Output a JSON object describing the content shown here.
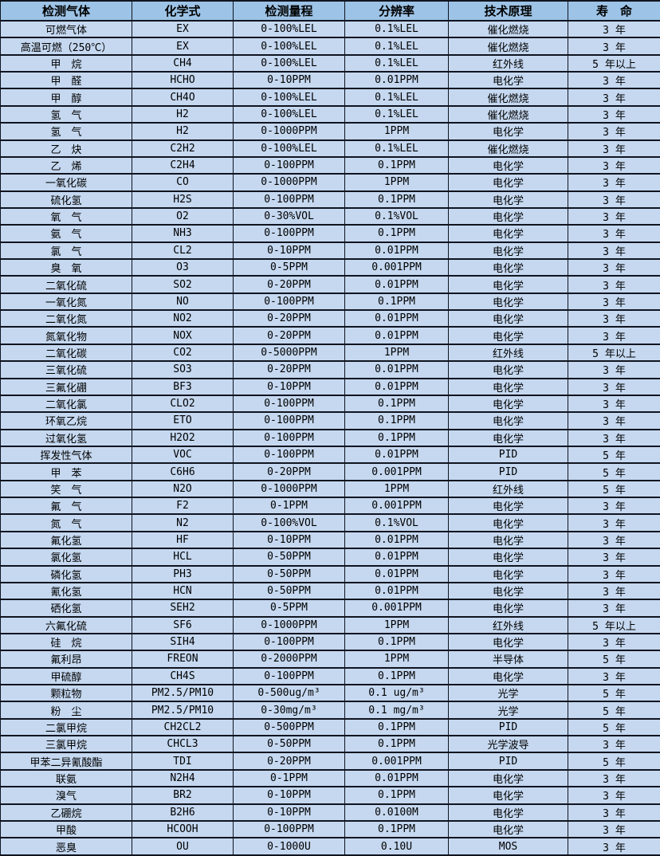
{
  "colors": {
    "header_bg": "#9DC3E6",
    "row_bg": "#C5D8F0",
    "border": "#10141F",
    "text": "#000000"
  },
  "table": {
    "columns": [
      "gas",
      "formula",
      "range",
      "resolution",
      "principle",
      "lifespan"
    ],
    "headers": [
      "检测气体",
      "化学式",
      "检测量程",
      "分辨率",
      "技术原理",
      "寿　命"
    ],
    "rows": [
      [
        "可燃气体",
        "EX",
        "0-100%LEL",
        "0.1%LEL",
        "催化燃烧",
        "3 年"
      ],
      [
        "高温可燃（250℃）",
        "EX",
        "0-100%LEL",
        "0.1%LEL",
        "催化燃烧",
        "3 年"
      ],
      [
        "甲　烷",
        "CH4",
        "0-100%LEL",
        "0.1%LEL",
        "红外线",
        "5 年以上"
      ],
      [
        "甲　醛",
        "HCHO",
        "0-10PPM",
        "0.01PPM",
        "电化学",
        "3 年"
      ],
      [
        "甲　醇",
        "CH4O",
        "0-100%LEL",
        "0.1%LEL",
        "催化燃烧",
        "3 年"
      ],
      [
        "氢　气",
        "H2",
        "0-100%LEL",
        "0.1%LEL",
        "催化燃烧",
        "3 年"
      ],
      [
        "氢　气",
        "H2",
        "0-1000PPM",
        "1PPM",
        "电化学",
        "3 年"
      ],
      [
        "乙　炔",
        "C2H2",
        "0-100%LEL",
        "0.1%LEL",
        "催化燃烧",
        "3 年"
      ],
      [
        "乙　烯",
        "C2H4",
        "0-100PPM",
        "0.1PPM",
        "电化学",
        "3 年"
      ],
      [
        "一氧化碳",
        "CO",
        "0-1000PPM",
        "1PPM",
        "电化学",
        "3 年"
      ],
      [
        "硫化氢",
        "H2S",
        "0-100PPM",
        "0.1PPM",
        "电化学",
        "3 年"
      ],
      [
        "氧　气",
        "O2",
        "0-30%VOL",
        "0.1%VOL",
        "电化学",
        "3 年"
      ],
      [
        "氨　气",
        "NH3",
        "0-100PPM",
        "0.1PPM",
        "电化学",
        "3 年"
      ],
      [
        "氯　气",
        "CL2",
        "0-10PPM",
        "0.01PPM",
        "电化学",
        "3 年"
      ],
      [
        "臭　氧",
        "O3",
        "0-5PPM",
        "0.001PPM",
        "电化学",
        "3 年"
      ],
      [
        "二氧化硫",
        "SO2",
        "0-20PPM",
        "0.01PPM",
        "电化学",
        "3 年"
      ],
      [
        "一氧化氮",
        "NO",
        "0-100PPM",
        "0.1PPM",
        "电化学",
        "3 年"
      ],
      [
        "二氧化氮",
        "NO2",
        "0-20PPM",
        "0.01PPM",
        "电化学",
        "3 年"
      ],
      [
        "氮氧化物",
        "NOX",
        "0-20PPM",
        "0.01PPM",
        "电化学",
        "3 年"
      ],
      [
        "二氧化碳",
        "CO2",
        "0-5000PPM",
        "1PPM",
        "红外线",
        "5 年以上"
      ],
      [
        "三氧化硫",
        "SO3",
        "0-20PPM",
        "0.01PPM",
        "电化学",
        "3 年"
      ],
      [
        "三氟化硼",
        "BF3",
        "0-10PPM",
        "0.01PPM",
        "电化学",
        "3 年"
      ],
      [
        "二氧化氯",
        "CLO2",
        "0-100PPM",
        "0.1PPM",
        "电化学",
        "3 年"
      ],
      [
        "环氧乙烷",
        "ETO",
        "0-100PPM",
        "0.1PPM",
        "电化学",
        "3 年"
      ],
      [
        "过氧化氢",
        "H2O2",
        "0-100PPM",
        "0.1PPM",
        "电化学",
        "3 年"
      ],
      [
        "挥发性气体",
        "VOC",
        "0-100PPM",
        "0.01PPM",
        "PID",
        "5 年"
      ],
      [
        "甲　苯",
        "C6H6",
        "0-20PPM",
        "0.001PPM",
        "PID",
        "5 年"
      ],
      [
        "笑　气",
        "N2O",
        "0-1000PPM",
        "1PPM",
        "红外线",
        "5 年"
      ],
      [
        "氟　气",
        "F2",
        "0-1PPM",
        "0.001PPM",
        "电化学",
        "3 年"
      ],
      [
        "氮　气",
        "N2",
        "0-100%VOL",
        "0.1%VOL",
        "电化学",
        "3 年"
      ],
      [
        "氟化氢",
        "HF",
        "0-10PPM",
        "0.01PPM",
        "电化学",
        "3 年"
      ],
      [
        "氯化氢",
        "HCL",
        "0-50PPM",
        "0.01PPM",
        "电化学",
        "3 年"
      ],
      [
        "磷化氢",
        "PH3",
        "0-50PPM",
        "0.01PPM",
        "电化学",
        "3 年"
      ],
      [
        "氰化氢",
        "HCN",
        "0-50PPM",
        "0.01PPM",
        "电化学",
        "3 年"
      ],
      [
        "硒化氢",
        "SEH2",
        "0-5PPM",
        "0.001PPM",
        "电化学",
        "3 年"
      ],
      [
        "六氟化硫",
        "SF6",
        "0-1000PPM",
        "1PPM",
        "红外线",
        "5 年以上"
      ],
      [
        "硅　烷",
        "SIH4",
        "0-100PPM",
        "0.1PPM",
        "电化学",
        "3 年"
      ],
      [
        "氟利昂",
        "FREON",
        "0-2000PPM",
        "1PPM",
        "半导体",
        "5 年"
      ],
      [
        "甲硫醇",
        "CH4S",
        "0-100PPM",
        "0.1PPM",
        "电化学",
        "3 年"
      ],
      [
        "颗粒物",
        "PM2.5/PM10",
        "0-500ug/m³",
        "0.1 ug/m³",
        "光学",
        "5 年"
      ],
      [
        "粉　尘",
        "PM2.5/PM10",
        "0-30mg/m³",
        "0.1 mg/m³",
        "光学",
        "5 年"
      ],
      [
        "二氯甲烷",
        "CH2CL2",
        "0-500PPM",
        "0.1PPM",
        "PID",
        "5 年"
      ],
      [
        "三氯甲烷",
        "CHCL3",
        "0-50PPM",
        "0.1PPM",
        "光学波导",
        "3 年"
      ],
      [
        "甲苯二异氰酸酯",
        "TDI",
        "0-20PPM",
        "0.001PPM",
        "PID",
        "5 年"
      ],
      [
        "联氨",
        "N2H4",
        "0-1PPM",
        "0.01PPM",
        "电化学",
        "3 年"
      ],
      [
        "溴气",
        "BR2",
        "0-10PPM",
        "0.1PPM",
        "电化学",
        "3 年"
      ],
      [
        "乙硼烷",
        "B2H6",
        "0-10PPM",
        "0.0100M",
        "电化学",
        "3 年"
      ],
      [
        "甲酸",
        "HCOOH",
        "0-100PPM",
        "0.1PPM",
        "电化学",
        "3 年"
      ],
      [
        "恶臭",
        "OU",
        "0-1000U",
        "0.10U",
        "MOS",
        "3 年"
      ]
    ]
  }
}
